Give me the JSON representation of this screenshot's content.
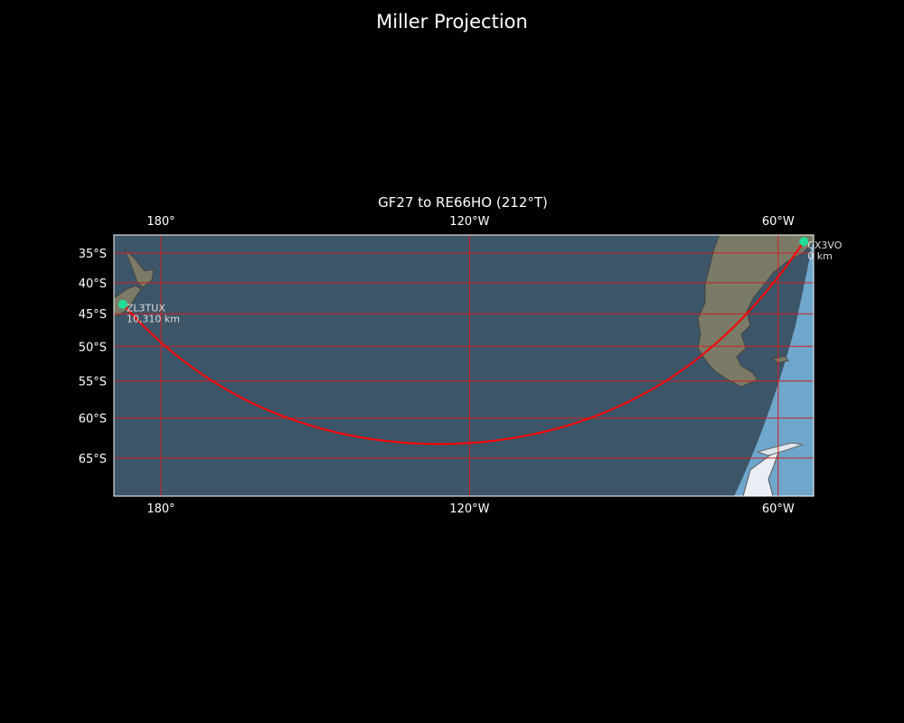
{
  "title": "Miller Projection",
  "subtitle": "GF27 to RE66HO (212°T)",
  "map": {
    "projection": "miller",
    "extent": {
      "lon_min": 170.9,
      "lon_max": -53.0,
      "lat_min": -69.5,
      "lat_max": -32.0
    },
    "lon_ticks": [
      {
        "lon": 180,
        "label": "180°"
      },
      {
        "lon": -120,
        "label": "120°W"
      },
      {
        "lon": -60,
        "label": "60°W"
      }
    ],
    "lat_ticks": [
      {
        "lat": -35,
        "label": "35°S"
      },
      {
        "lat": -40,
        "label": "40°S"
      },
      {
        "lat": -45,
        "label": "45°S"
      },
      {
        "lat": -50,
        "label": "50°S"
      },
      {
        "lat": -55,
        "label": "55°S"
      },
      {
        "lat": -60,
        "label": "60°S"
      },
      {
        "lat": -65,
        "label": "65°S"
      }
    ],
    "grid_color": "#cc2222",
    "path_color": "#ff0000",
    "marker_color": "#22dd99",
    "ocean_color": "#3d5568",
    "day_ocean_color": "#6fa6cc",
    "land_color": "#7a7a66"
  },
  "stations": [
    {
      "name": "CX3VO",
      "distance": "0 km",
      "lat": -33.0,
      "lon": -55.0
    },
    {
      "name": "ZL3TUX",
      "distance": "10,310 km",
      "lat": -43.5,
      "lon": 172.6
    }
  ]
}
